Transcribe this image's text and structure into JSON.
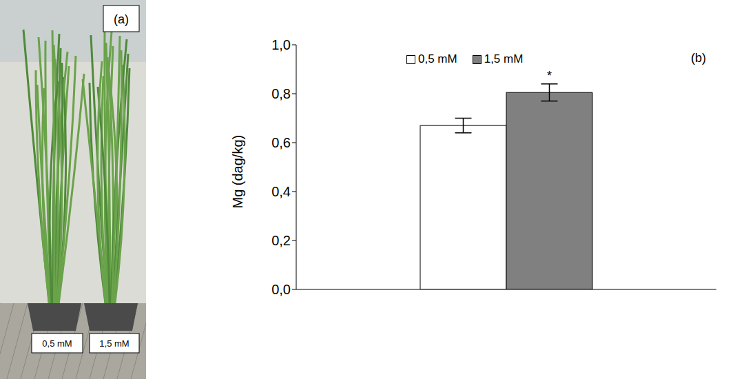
{
  "photo": {
    "panel": "(a)",
    "labels": [
      "0,5 mM",
      "1,5 mM"
    ]
  },
  "chart_data": {
    "type": "bar",
    "panel": "(b)",
    "y_label": "Mg (dag/kg)",
    "categories": [
      null
    ],
    "series": [
      {
        "name": "0,5 mM",
        "color": "#ffffff",
        "values": [
          0.67
        ],
        "errors": [
          0.03
        ]
      },
      {
        "name": "1,5 mM",
        "color": "#808080",
        "values": [
          0.805
        ],
        "errors": [
          0.035
        ]
      }
    ],
    "annotations": [
      {
        "text": "*",
        "series": "1,5 mM",
        "category": 0
      }
    ],
    "ylim": [
      0,
      1
    ],
    "yticks": [
      {
        "value": 0,
        "label": "0,0"
      },
      {
        "value": 0.2,
        "label": "0,2"
      },
      {
        "value": 0.4,
        "label": "0,4"
      },
      {
        "value": 0.6,
        "label": "0,6"
      },
      {
        "value": 0.8,
        "label": "0,8"
      },
      {
        "value": 1,
        "label": "1,0"
      }
    ],
    "legend": "top",
    "grid": false
  }
}
